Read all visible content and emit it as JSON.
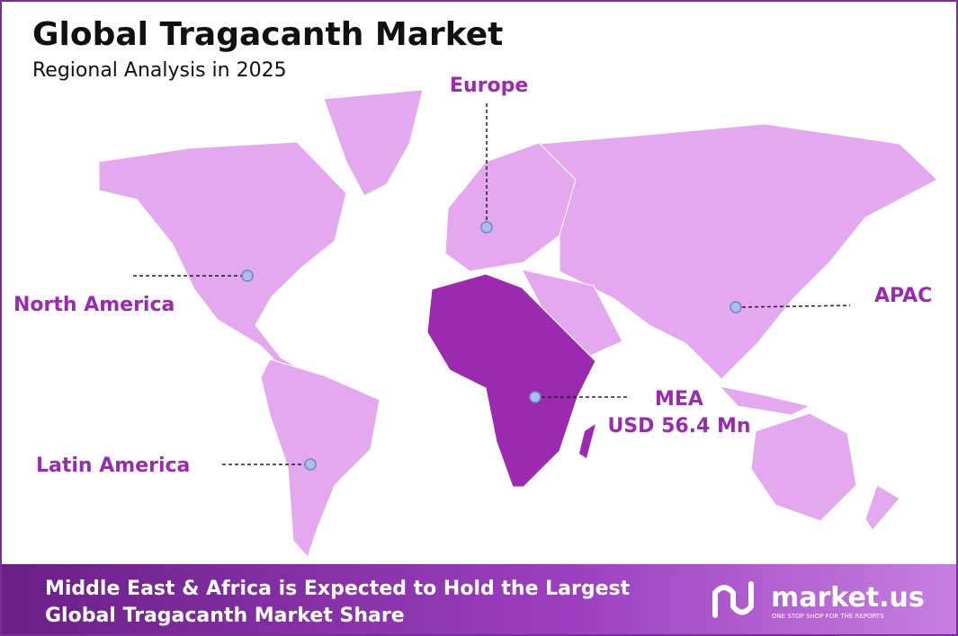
{
  "header": {
    "title": "Global Tragacanth Market",
    "subtitle": "Regional Analysis in 2025"
  },
  "regions": [
    {
      "label": "Europe"
    },
    {
      "label": "North America"
    },
    {
      "label": "APAC"
    },
    {
      "label": "MEA",
      "value": "USD 56.4 Mn"
    },
    {
      "label": "Latin America"
    }
  ],
  "footer": {
    "lines": [
      "Middle East & Africa is Expected to Hold the Largest",
      "Global Tragacanth Market Share"
    ]
  },
  "brand": {
    "name": "market.us",
    "tagline": "ONE STOP SHOP FOR THE REPORTS"
  }
}
